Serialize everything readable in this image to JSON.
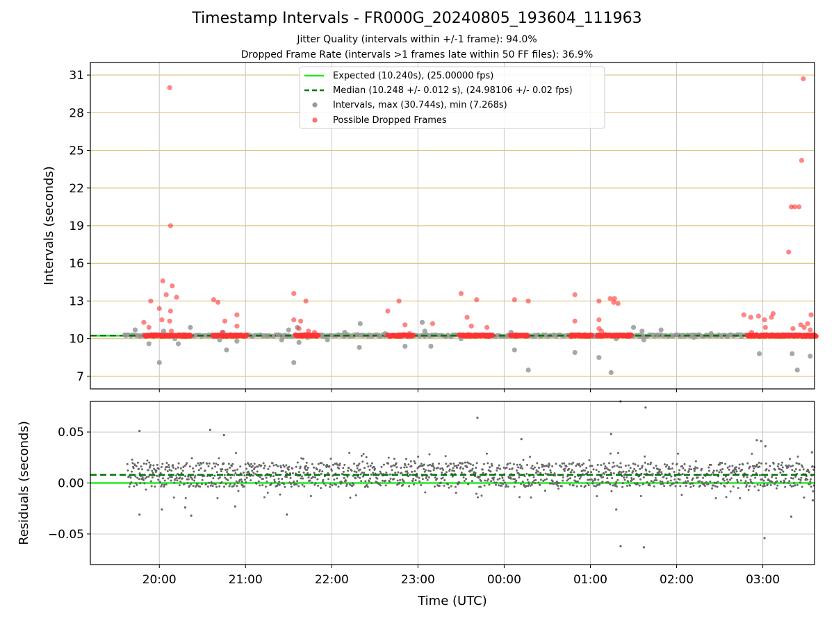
{
  "title": "Timestamp Intervals - FR000G_20240805_193604_111963",
  "subtitle_1": "Jitter Quality (intervals within +/-1 frame): 94.0%",
  "subtitle_2": "Dropped Frame Rate (intervals >1 frames late within 50 FF files): 36.9%",
  "colors": {
    "expected": "#22ee22",
    "median": "#007700",
    "intervals": "#999999",
    "dropped": "#ff3333",
    "residual": "#666666",
    "hgrid_top": "#d9c27a",
    "grid": "#c8c8c8"
  },
  "chart_data": [
    {
      "type": "scatter",
      "panel": "top",
      "ylabel": "Intervals (seconds)",
      "ylim": [
        6,
        32
      ],
      "yticks": [
        7,
        10,
        13,
        16,
        19,
        22,
        25,
        28,
        31
      ],
      "x_axis": "time (UTC), hours after 19:36 on 2024-08-05",
      "xlim_hours": [
        19.2,
        27.6
      ],
      "xticks": [
        "20:00",
        "21:00",
        "22:00",
        "23:00",
        "00:00",
        "01:00",
        "02:00",
        "03:00"
      ],
      "xtick_hours": [
        20,
        21,
        22,
        23,
        24,
        25,
        26,
        27
      ],
      "legend": [
        "Expected (10.240s), (25.00000 fps)",
        "Median (10.248 +/- 0.012 s), (24.98106 +/- 0.02 fps)",
        "Intervals, max (30.744s), min (7.268s)",
        "Possible Dropped Frames"
      ],
      "legend_position": "top-center",
      "expected": 10.24,
      "median": 10.248,
      "series": [
        {
          "name": "Intervals, max (30.744s), min (7.268s)",
          "points": [
            [
              19.6,
              10.3
            ],
            [
              19.72,
              10.7
            ],
            [
              19.78,
              10.2
            ],
            [
              19.88,
              9.6
            ],
            [
              20.0,
              8.1
            ],
            [
              20.05,
              10.6
            ],
            [
              20.18,
              10.0
            ],
            [
              20.22,
              9.6
            ],
            [
              20.36,
              10.9
            ],
            [
              20.7,
              9.9
            ],
            [
              20.74,
              10.5
            ],
            [
              20.78,
              9.1
            ],
            [
              20.9,
              9.8
            ],
            [
              21.25,
              10.2
            ],
            [
              21.38,
              10.3
            ],
            [
              21.42,
              9.9
            ],
            [
              21.5,
              10.7
            ],
            [
              21.56,
              8.1
            ],
            [
              21.6,
              10.9
            ],
            [
              21.62,
              9.7
            ],
            [
              21.72,
              10.1
            ],
            [
              21.88,
              10.3
            ],
            [
              21.95,
              9.9
            ],
            [
              22.15,
              10.5
            ],
            [
              22.3,
              10.3
            ],
            [
              22.32,
              9.3
            ],
            [
              22.33,
              11.2
            ],
            [
              22.55,
              10.2
            ],
            [
              22.62,
              10.4
            ],
            [
              22.85,
              9.4
            ],
            [
              22.9,
              10.3
            ],
            [
              23.05,
              11.3
            ],
            [
              23.08,
              10.6
            ],
            [
              23.15,
              9.4
            ],
            [
              23.5,
              10.0
            ],
            [
              23.68,
              10.2
            ],
            [
              23.78,
              10.3
            ],
            [
              24.08,
              10.5
            ],
            [
              24.12,
              9.1
            ],
            [
              24.28,
              7.5
            ],
            [
              24.58,
              10.3
            ],
            [
              24.82,
              8.9
            ],
            [
              25.05,
              10.2
            ],
            [
              25.1,
              8.5
            ],
            [
              25.24,
              7.3
            ],
            [
              25.3,
              10.0
            ],
            [
              25.38,
              10.2
            ],
            [
              25.5,
              10.9
            ],
            [
              25.6,
              10.6
            ],
            [
              25.62,
              9.9
            ],
            [
              25.78,
              10.3
            ],
            [
              25.82,
              10.7
            ],
            [
              26.0,
              10.3
            ],
            [
              26.2,
              10.1
            ],
            [
              26.4,
              10.4
            ],
            [
              26.6,
              10.2
            ],
            [
              26.88,
              10.2
            ],
            [
              26.96,
              8.8
            ],
            [
              27.1,
              10.3
            ],
            [
              27.34,
              8.8
            ],
            [
              27.4,
              7.5
            ],
            [
              27.55,
              8.6
            ]
          ]
        },
        {
          "name": "Possible Dropped Frames",
          "points": [
            [
              19.82,
              11.3
            ],
            [
              19.88,
              10.9
            ],
            [
              19.9,
              13.0
            ],
            [
              19.95,
              10.3
            ],
            [
              20.0,
              12.4
            ],
            [
              20.03,
              11.5
            ],
            [
              20.04,
              14.6
            ],
            [
              20.08,
              13.5
            ],
            [
              20.12,
              11.4
            ],
            [
              20.12,
              30.0
            ],
            [
              20.13,
              12.2
            ],
            [
              20.13,
              19.0
            ],
            [
              20.14,
              10.6
            ],
            [
              20.15,
              14.2
            ],
            [
              20.2,
              13.3
            ],
            [
              20.3,
              10.3
            ],
            [
              20.63,
              13.1
            ],
            [
              20.68,
              12.9
            ],
            [
              20.73,
              10.5
            ],
            [
              20.76,
              11.4
            ],
            [
              20.83,
              10.3
            ],
            [
              20.9,
              11.9
            ],
            [
              20.9,
              11.0
            ],
            [
              21.56,
              13.6
            ],
            [
              21.56,
              11.5
            ],
            [
              21.62,
              10.8
            ],
            [
              21.64,
              11.4
            ],
            [
              21.7,
              13.0
            ],
            [
              21.73,
              10.6
            ],
            [
              21.8,
              10.5
            ],
            [
              22.65,
              12.2
            ],
            [
              22.78,
              13.0
            ],
            [
              22.85,
              11.1
            ],
            [
              22.9,
              10.4
            ],
            [
              23.17,
              11.2
            ],
            [
              23.5,
              13.6
            ],
            [
              23.57,
              11.7
            ],
            [
              23.62,
              11.0
            ],
            [
              23.68,
              13.1
            ],
            [
              23.8,
              10.9
            ],
            [
              24.12,
              13.1
            ],
            [
              24.28,
              13.0
            ],
            [
              24.82,
              13.5
            ],
            [
              24.82,
              11.4
            ],
            [
              25.1,
              13.0
            ],
            [
              25.1,
              11.5
            ],
            [
              25.13,
              10.6
            ],
            [
              25.1,
              10.8
            ],
            [
              25.23,
              13.2
            ],
            [
              25.27,
              12.9
            ],
            [
              25.28,
              13.2
            ],
            [
              25.32,
              12.8
            ],
            [
              26.78,
              11.9
            ],
            [
              26.86,
              11.7
            ],
            [
              26.87,
              10.5
            ],
            [
              26.95,
              11.8
            ],
            [
              27.02,
              11.5
            ],
            [
              27.03,
              10.9
            ],
            [
              27.1,
              11.7
            ],
            [
              27.12,
              12.0
            ],
            [
              27.3,
              16.9
            ],
            [
              27.33,
              20.5
            ],
            [
              27.35,
              10.8
            ],
            [
              27.37,
              20.5
            ],
            [
              27.42,
              20.5
            ],
            [
              27.44,
              11.1
            ],
            [
              27.45,
              24.2
            ],
            [
              27.48,
              10.9
            ],
            [
              27.47,
              30.7
            ],
            [
              27.52,
              11.2
            ],
            [
              27.55,
              10.7
            ],
            [
              27.56,
              11.9
            ]
          ]
        }
      ],
      "dropped_dense_bands_hours": [
        [
          19.83,
          20.37
        ],
        [
          20.62,
          21.02
        ],
        [
          21.58,
          21.85
        ],
        [
          22.65,
          22.95
        ],
        [
          23.48,
          23.87
        ],
        [
          24.07,
          24.28
        ],
        [
          24.77,
          25.02
        ],
        [
          25.08,
          25.48
        ],
        [
          26.82,
          27.62
        ]
      ],
      "dropped_band_value": 10.25
    },
    {
      "type": "scatter",
      "panel": "bottom",
      "xlabel": "Time (UTC)",
      "ylabel": "Residuals (seconds)",
      "ylim": [
        -0.08,
        0.08
      ],
      "yticks": [
        0.05,
        0.0,
        -0.05
      ],
      "ytick_labels": [
        "0.05",
        "0.00",
        "−0.05"
      ],
      "expected": 0.0,
      "median": 0.008,
      "range_hours": [
        19.63,
        27.6
      ],
      "typical_spread": [
        -0.004,
        0.02
      ],
      "outliers": [
        [
          19.77,
          0.051
        ],
        [
          19.77,
          -0.031
        ],
        [
          20.03,
          -0.026
        ],
        [
          20.3,
          -0.024
        ],
        [
          20.37,
          -0.032
        ],
        [
          20.59,
          0.052
        ],
        [
          20.75,
          0.047
        ],
        [
          20.88,
          -0.023
        ],
        [
          21.48,
          -0.031
        ],
        [
          23.69,
          0.064
        ],
        [
          24.2,
          0.043
        ],
        [
          25.24,
          0.048
        ],
        [
          25.3,
          -0.026
        ],
        [
          25.35,
          0.08
        ],
        [
          25.35,
          -0.062
        ],
        [
          25.62,
          -0.063
        ],
        [
          25.64,
          0.074
        ],
        [
          26.93,
          0.042
        ],
        [
          26.98,
          0.041
        ],
        [
          27.03,
          0.036
        ],
        [
          27.02,
          -0.054
        ],
        [
          27.33,
          -0.033
        ],
        [
          27.57,
          0.03
        ],
        [
          27.58,
          -0.017
        ]
      ]
    }
  ]
}
